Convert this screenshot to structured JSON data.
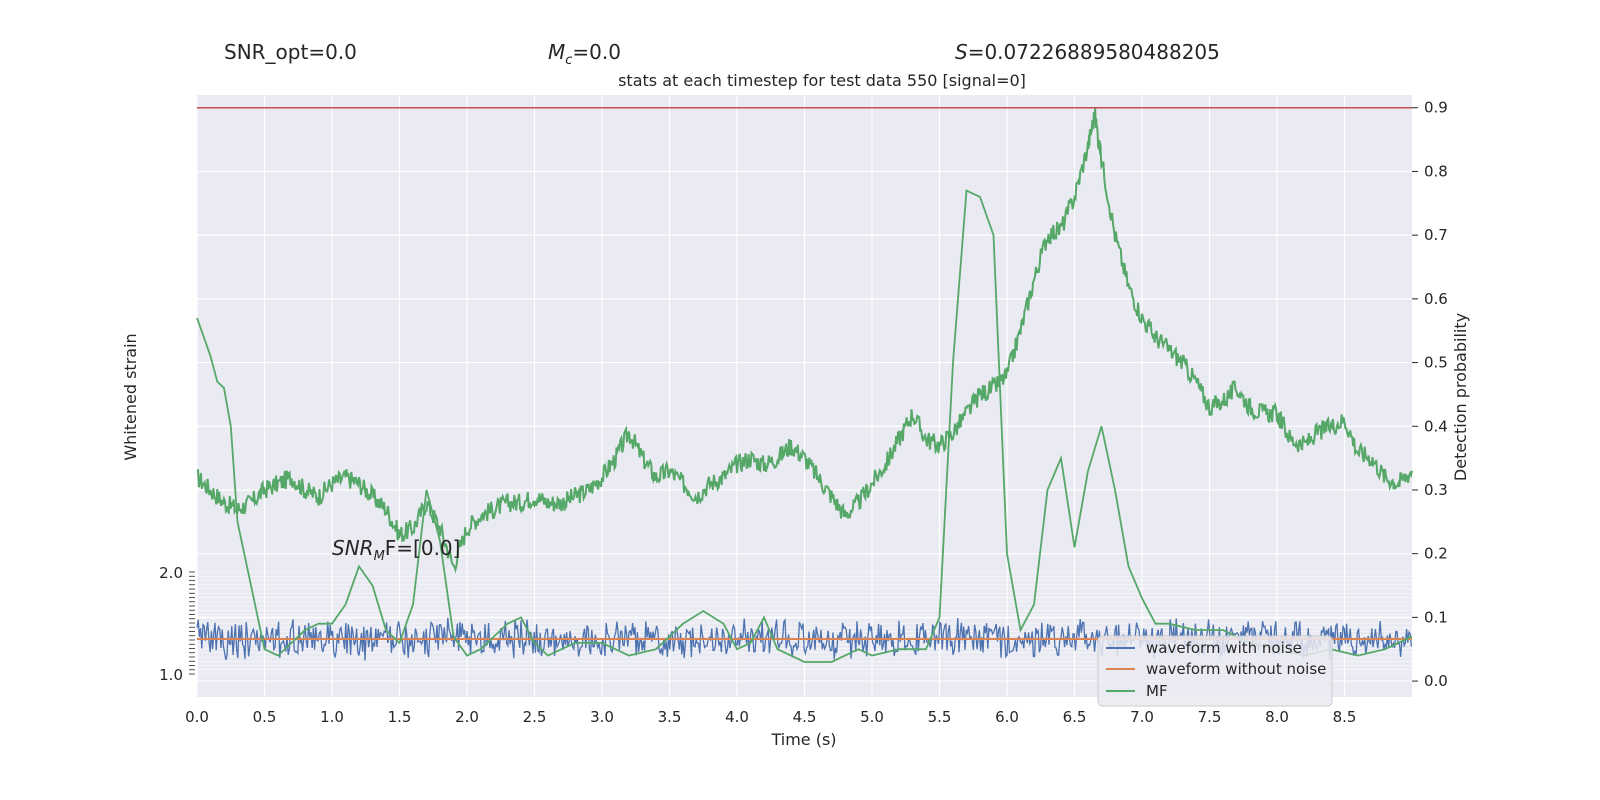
{
  "header": {
    "snr_opt": "SNR_opt=0.0",
    "mc_prefix": "M",
    "mc_sub": "c",
    "mc_value": "=0.0",
    "s_prefix": "S",
    "s_value": "=0.07226889580488205",
    "snr_mf_prefix": "SNR",
    "snr_mf_sub": "M",
    "snr_mf_value": "F=[0.0]"
  },
  "chart_data": {
    "type": "line",
    "title": "stats at each timestep for test data 550 [signal=0]",
    "xlabel": "Time (s)",
    "ylabel_left": "Whitened strain",
    "ylabel_right": "Detection probability",
    "xlim": [
      0,
      9.0
    ],
    "ylim_right": [
      -0.025,
      0.92
    ],
    "threshold": 0.9,
    "x_ticks": [
      "0.0",
      "0.5",
      "1.0",
      "1.5",
      "2.0",
      "2.5",
      "3.0",
      "3.5",
      "4.0",
      "4.5",
      "5.0",
      "5.5",
      "6.0",
      "6.5",
      "7.0",
      "7.5",
      "8.0",
      "8.5"
    ],
    "y_right_ticks": [
      "0.0",
      "0.1",
      "0.2",
      "0.3",
      "0.4",
      "0.5",
      "0.6",
      "0.7",
      "0.8",
      "0.9"
    ],
    "y_left_tick_labels": [
      "2.0",
      "1.0"
    ],
    "grid": true,
    "legend_position": "bottom-right",
    "colors": {
      "noise": "#4c72b0",
      "clean": "#dd8452",
      "mf": "#55a868",
      "threshold": "#c44e52",
      "probability": "#55a868",
      "background": "#eaeaf2"
    },
    "legend": [
      "waveform with noise",
      "waveform without noise",
      "MF"
    ],
    "detection_probability": {
      "x": [
        0.0,
        0.1,
        0.2,
        0.3,
        0.4,
        0.5,
        0.6,
        0.7,
        0.8,
        0.9,
        1.0,
        1.1,
        1.2,
        1.3,
        1.4,
        1.5,
        1.6,
        1.7,
        1.8,
        1.9,
        2.0,
        2.1,
        2.2,
        2.3,
        2.4,
        2.5,
        2.6,
        2.7,
        2.8,
        2.9,
        3.0,
        3.1,
        3.2,
        3.3,
        3.4,
        3.5,
        3.6,
        3.7,
        3.8,
        3.9,
        4.0,
        4.1,
        4.2,
        4.3,
        4.4,
        4.5,
        4.6,
        4.7,
        4.8,
        4.9,
        5.0,
        5.1,
        5.2,
        5.3,
        5.4,
        5.5,
        5.6,
        5.7,
        5.8,
        5.9,
        6.0,
        6.1,
        6.2,
        6.3,
        6.4,
        6.5,
        6.6,
        6.65,
        6.7,
        6.8,
        6.9,
        7.0,
        7.1,
        7.2,
        7.3,
        7.4,
        7.5,
        7.6,
        7.7,
        7.8,
        7.9,
        8.0,
        8.1,
        8.2,
        8.3,
        8.4,
        8.5,
        8.6,
        8.7,
        8.8,
        8.9,
        9.0
      ],
      "y": [
        0.32,
        0.3,
        0.28,
        0.27,
        0.28,
        0.3,
        0.31,
        0.32,
        0.3,
        0.29,
        0.31,
        0.32,
        0.31,
        0.29,
        0.27,
        0.23,
        0.24,
        0.28,
        0.24,
        0.18,
        0.24,
        0.26,
        0.27,
        0.28,
        0.28,
        0.29,
        0.28,
        0.28,
        0.29,
        0.3,
        0.32,
        0.35,
        0.39,
        0.35,
        0.32,
        0.33,
        0.31,
        0.29,
        0.31,
        0.32,
        0.34,
        0.35,
        0.34,
        0.35,
        0.37,
        0.35,
        0.32,
        0.29,
        0.26,
        0.28,
        0.31,
        0.34,
        0.38,
        0.42,
        0.38,
        0.37,
        0.39,
        0.42,
        0.45,
        0.46,
        0.48,
        0.55,
        0.63,
        0.7,
        0.71,
        0.76,
        0.84,
        0.89,
        0.82,
        0.7,
        0.62,
        0.57,
        0.54,
        0.52,
        0.5,
        0.47,
        0.43,
        0.44,
        0.46,
        0.43,
        0.42,
        0.42,
        0.38,
        0.37,
        0.39,
        0.4,
        0.41,
        0.36,
        0.35,
        0.32,
        0.31,
        0.33
      ]
    },
    "mf": {
      "x": [
        0.0,
        0.05,
        0.1,
        0.15,
        0.2,
        0.25,
        0.3,
        0.4,
        0.5,
        0.6,
        0.7,
        0.8,
        0.9,
        1.0,
        1.1,
        1.2,
        1.3,
        1.4,
        1.5,
        1.6,
        1.7,
        1.8,
        1.9,
        2.0,
        2.1,
        2.2,
        2.3,
        2.4,
        2.5,
        2.6,
        2.7,
        2.8,
        3.0,
        3.2,
        3.4,
        3.6,
        3.75,
        3.9,
        4.0,
        4.1,
        4.2,
        4.3,
        4.5,
        4.7,
        4.8,
        4.9,
        5.0,
        5.2,
        5.4,
        5.5,
        5.6,
        5.7,
        5.8,
        5.9,
        6.0,
        6.1,
        6.2,
        6.3,
        6.4,
        6.5,
        6.6,
        6.7,
        6.8,
        6.9,
        7.0,
        7.1,
        7.2,
        7.4,
        7.6,
        7.8,
        8.0,
        8.2,
        8.4,
        8.6,
        8.8,
        9.0
      ],
      "y": [
        0.57,
        0.54,
        0.51,
        0.47,
        0.46,
        0.4,
        0.25,
        0.15,
        0.05,
        0.04,
        0.06,
        0.08,
        0.09,
        0.09,
        0.12,
        0.18,
        0.15,
        0.08,
        0.06,
        0.12,
        0.3,
        0.22,
        0.07,
        0.04,
        0.05,
        0.07,
        0.09,
        0.1,
        0.06,
        0.04,
        0.05,
        0.06,
        0.06,
        0.04,
        0.05,
        0.09,
        0.11,
        0.09,
        0.05,
        0.06,
        0.1,
        0.05,
        0.03,
        0.03,
        0.04,
        0.05,
        0.04,
        0.05,
        0.05,
        0.1,
        0.5,
        0.77,
        0.76,
        0.7,
        0.2,
        0.08,
        0.12,
        0.3,
        0.35,
        0.21,
        0.33,
        0.4,
        0.3,
        0.18,
        0.13,
        0.09,
        0.09,
        0.08,
        0.08,
        0.06,
        0.05,
        0.04,
        0.05,
        0.04,
        0.05,
        0.07
      ]
    }
  }
}
